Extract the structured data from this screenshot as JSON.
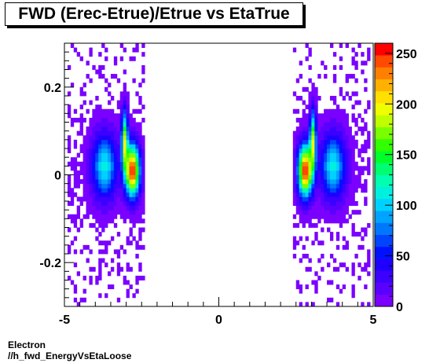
{
  "chart_data": {
    "type": "heatmap",
    "title": "FWD (Erec-Etrue)/Etrue vs EtaTrue",
    "xlabel": "",
    "ylabel": "",
    "xlim": [
      -5,
      5
    ],
    "ylim": [
      -0.3,
      0.3
    ],
    "x_ticks": [
      {
        "value": -5,
        "label": "-5"
      },
      {
        "value": 0,
        "label": "0"
      },
      {
        "value": 5,
        "label": "5"
      }
    ],
    "y_ticks": [
      {
        "value": -0.2,
        "label": "-0.2"
      },
      {
        "value": 0,
        "label": "0"
      },
      {
        "value": 0.2,
        "label": "0.2"
      }
    ],
    "z_range": [
      0,
      260
    ],
    "z_ticks": [
      {
        "value": 0,
        "label": "0"
      },
      {
        "value": 50,
        "label": "50"
      },
      {
        "value": 100,
        "label": "100"
      },
      {
        "value": 150,
        "label": "150"
      },
      {
        "value": 200,
        "label": "200"
      },
      {
        "value": 250,
        "label": "250"
      }
    ],
    "colors": [
      "#7a00ff",
      "#5a00ff",
      "#3b00ff",
      "#1f00ff",
      "#0011ff",
      "#0044ff",
      "#0077ff",
      "#00a4ff",
      "#00d2ff",
      "#00f0e0",
      "#00ffb0",
      "#00ff70",
      "#00ff28",
      "#33ff00",
      "#7aff00",
      "#bfff00",
      "#f0ff00",
      "#ffe000",
      "#ffb000",
      "#ff8000",
      "#ff4a00",
      "#ff0000"
    ],
    "bins": {
      "x": 100,
      "y": 60
    },
    "clusters": [
      {
        "x": -3.7,
        "y": 0.02,
        "sx": 0.28,
        "sy": 0.05,
        "peak": 110
      },
      {
        "x": -3.05,
        "y": 0.08,
        "sx": 0.07,
        "sy": 0.045,
        "peak": 170
      },
      {
        "x": -2.8,
        "y": 0.01,
        "sx": 0.16,
        "sy": 0.04,
        "peak": 255
      },
      {
        "x": 2.8,
        "y": 0.01,
        "sx": 0.16,
        "sy": 0.04,
        "peak": 255
      },
      {
        "x": 3.05,
        "y": 0.08,
        "sx": 0.07,
        "sy": 0.045,
        "peak": 170
      },
      {
        "x": 3.7,
        "y": 0.02,
        "sx": 0.28,
        "sy": 0.05,
        "peak": 110
      }
    ],
    "coverage": {
      "abs_eta_min": 2.4,
      "abs_eta_max": 4.9
    }
  },
  "footer": {
    "line1": "Electron",
    "line2": "//h_fwd_EnergyVsEtaLoose"
  }
}
